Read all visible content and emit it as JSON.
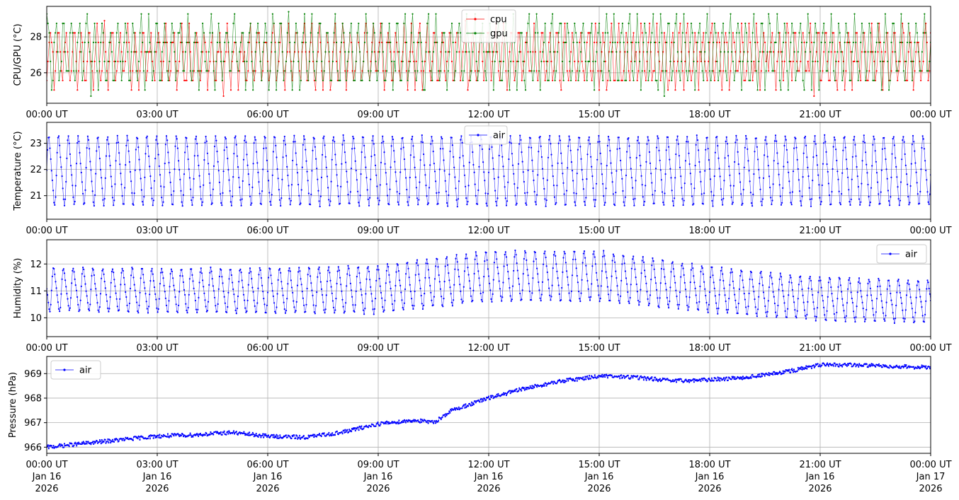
{
  "x_range_hours": [
    0,
    24
  ],
  "x_ticks": [
    {
      "hour": 0,
      "label": "00:00 UT",
      "date": "Jan 16",
      "year": "2026"
    },
    {
      "hour": 3,
      "label": "03:00 UT",
      "date": "Jan 16",
      "year": "2026"
    },
    {
      "hour": 6,
      "label": "06:00 UT",
      "date": "Jan 16",
      "year": "2026"
    },
    {
      "hour": 9,
      "label": "09:00 UT",
      "date": "Jan 16",
      "year": "2026"
    },
    {
      "hour": 12,
      "label": "12:00 UT",
      "date": "Jan 16",
      "year": "2026"
    },
    {
      "hour": 15,
      "label": "15:00 UT",
      "date": "Jan 16",
      "year": "2026"
    },
    {
      "hour": 18,
      "label": "18:00 UT",
      "date": "Jan 16",
      "year": "2026"
    },
    {
      "hour": 21,
      "label": "21:00 UT",
      "date": "Jan 16",
      "year": "2026"
    },
    {
      "hour": 24,
      "label": "00:00 UT",
      "date": "Jan 17",
      "year": "2026"
    }
  ],
  "chart_data": [
    {
      "type": "line",
      "ylabel": "CPU/GPU (°C)",
      "ylim": [
        24.3,
        29.7
      ],
      "yticks": [
        26,
        28
      ],
      "grid": true,
      "legend": "top-center",
      "series": [
        {
          "name": "cpu",
          "color": "#ff0000",
          "pattern": "sawtooth",
          "min": 24.7,
          "max": 28.9,
          "period_hours": 0.2083,
          "phase": 0.0,
          "quantum": 0.53
        },
        {
          "name": "gpu",
          "color": "#008000",
          "pattern": "sawtooth",
          "min": 24.7,
          "max": 29.4,
          "period_hours": 0.2105,
          "phase": 0.35,
          "quantum": 0.53
        }
      ]
    },
    {
      "type": "line",
      "ylabel": "Temperature (°C)",
      "ylim": [
        20.1,
        23.8
      ],
      "yticks": [
        21,
        22,
        23
      ],
      "grid": true,
      "legend": "top-center",
      "series": [
        {
          "name": "air",
          "color": "#0000ff",
          "pattern": "oscillation",
          "mean": 21.95,
          "amplitude": 1.5,
          "period_hours": 0.2667,
          "phase": 0.0
        }
      ]
    },
    {
      "type": "line",
      "ylabel": "Humidity (%)",
      "ylim": [
        9.3,
        12.9
      ],
      "yticks": [
        10,
        11,
        12
      ],
      "grid": true,
      "legend": "top-right",
      "series": [
        {
          "name": "air",
          "color": "#0000ff",
          "pattern": "oscillation",
          "period_hours": 0.2667,
          "phase": 0.5,
          "envelope": [
            {
              "hour": 0,
              "mean": 11.05,
              "amplitude": 0.9
            },
            {
              "hour": 6,
              "mean": 11.0,
              "amplitude": 0.95
            },
            {
              "hour": 9,
              "mean": 11.05,
              "amplitude": 1.0
            },
            {
              "hour": 12,
              "mean": 11.55,
              "amplitude": 1.05
            },
            {
              "hour": 15,
              "mean": 11.55,
              "amplitude": 1.05
            },
            {
              "hour": 18,
              "mean": 11.05,
              "amplitude": 0.95
            },
            {
              "hour": 21,
              "mean": 10.7,
              "amplitude": 0.9
            },
            {
              "hour": 24,
              "mean": 10.6,
              "amplitude": 0.9
            }
          ]
        }
      ]
    },
    {
      "type": "line",
      "ylabel": "Pressure (hPa)",
      "ylim": [
        965.75,
        969.7
      ],
      "yticks": [
        966,
        967,
        968,
        969
      ],
      "grid": true,
      "legend": "top-left",
      "series": [
        {
          "name": "air",
          "color": "#0000ff",
          "pattern": "trend",
          "points": [
            {
              "hour": 0,
              "value": 966.0
            },
            {
              "hour": 1,
              "value": 966.15
            },
            {
              "hour": 2,
              "value": 966.3
            },
            {
              "hour": 3,
              "value": 966.45
            },
            {
              "hour": 4,
              "value": 966.5
            },
            {
              "hour": 5,
              "value": 966.6
            },
            {
              "hour": 6,
              "value": 966.45
            },
            {
              "hour": 7,
              "value": 966.4
            },
            {
              "hour": 8,
              "value": 966.6
            },
            {
              "hour": 9,
              "value": 966.95
            },
            {
              "hour": 10,
              "value": 967.1
            },
            {
              "hour": 10.5,
              "value": 967.0
            },
            {
              "hour": 11,
              "value": 967.5
            },
            {
              "hour": 12,
              "value": 968.0
            },
            {
              "hour": 13,
              "value": 968.4
            },
            {
              "hour": 14,
              "value": 968.7
            },
            {
              "hour": 15,
              "value": 968.9
            },
            {
              "hour": 16,
              "value": 968.85
            },
            {
              "hour": 17,
              "value": 968.7
            },
            {
              "hour": 18,
              "value": 968.75
            },
            {
              "hour": 19,
              "value": 968.85
            },
            {
              "hour": 20,
              "value": 969.05
            },
            {
              "hour": 21,
              "value": 969.35
            },
            {
              "hour": 22,
              "value": 969.35
            },
            {
              "hour": 24,
              "value": 969.25
            }
          ]
        }
      ]
    }
  ]
}
